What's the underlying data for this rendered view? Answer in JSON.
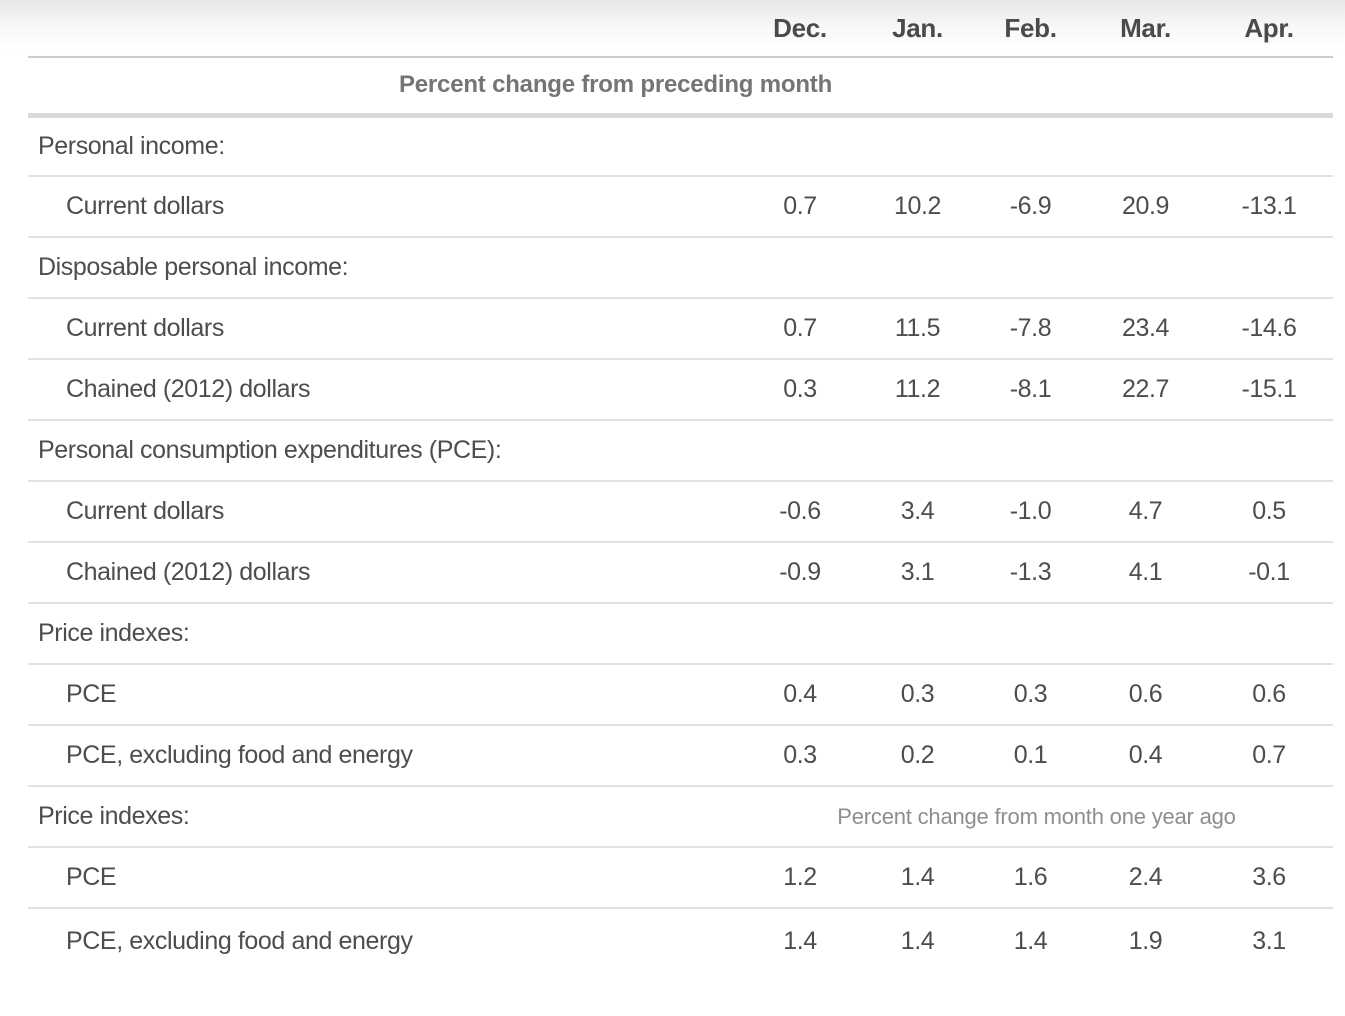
{
  "table": {
    "columns": [
      "Dec.",
      "Jan.",
      "Feb.",
      "Mar.",
      "Apr."
    ],
    "band_note_1": "Percent change from preceding month",
    "band_note_2": "Percent change from month one year ago",
    "rows": [
      {
        "type": "section",
        "label": "Personal income:"
      },
      {
        "type": "data",
        "label": "Current dollars",
        "values": [
          "0.7",
          "10.2",
          "-6.9",
          "20.9",
          "-13.1"
        ]
      },
      {
        "type": "section",
        "label": "Disposable personal income:"
      },
      {
        "type": "data",
        "label": "Current dollars",
        "values": [
          "0.7",
          "11.5",
          "-7.8",
          "23.4",
          "-14.6"
        ]
      },
      {
        "type": "data",
        "label": "Chained (2012) dollars",
        "values": [
          "0.3",
          "11.2",
          "-8.1",
          "22.7",
          "-15.1"
        ]
      },
      {
        "type": "section",
        "label": "Personal consumption expenditures (PCE):"
      },
      {
        "type": "data",
        "label": "Current dollars",
        "values": [
          "-0.6",
          "3.4",
          "-1.0",
          "4.7",
          "0.5"
        ]
      },
      {
        "type": "data",
        "label": "Chained (2012) dollars",
        "values": [
          "-0.9",
          "3.1",
          "-1.3",
          "4.1",
          "-0.1"
        ]
      },
      {
        "type": "section",
        "label": "Price indexes:"
      },
      {
        "type": "data",
        "label": "PCE",
        "values": [
          "0.4",
          "0.3",
          "0.3",
          "0.6",
          "0.6"
        ]
      },
      {
        "type": "data",
        "label": "PCE, excluding food and energy",
        "values": [
          "0.3",
          "0.2",
          "0.1",
          "0.4",
          "0.7"
        ]
      },
      {
        "type": "section",
        "label": "Price indexes:",
        "note": "Percent change from month one year ago"
      },
      {
        "type": "data",
        "label": "PCE",
        "values": [
          "1.2",
          "1.4",
          "1.6",
          "2.4",
          "3.6"
        ]
      },
      {
        "type": "data",
        "label": "PCE, excluding food and energy",
        "values": [
          "1.4",
          "1.4",
          "1.4",
          "1.9",
          "3.1"
        ]
      }
    ]
  },
  "colors": {
    "text_primary": "#4d4d4d",
    "text_header": "#4a4a4a",
    "text_band_note_bold": "#757575",
    "text_band_note_light": "#8e8e8e",
    "divider_thin": "#e1e1e1",
    "divider_header": "#cccccc",
    "divider_thick": "#d9d9d9",
    "header_gradient_top": "#e8e8e8",
    "background": "#ffffff"
  },
  "chart_data": {
    "type": "table",
    "title": "",
    "columns": [
      "Dec.",
      "Jan.",
      "Feb.",
      "Mar.",
      "Apr."
    ],
    "sections": [
      {
        "band": "Percent change from preceding month",
        "groups": [
          {
            "group": "Personal income:",
            "rows": [
              {
                "label": "Current dollars",
                "values": [
                  0.7,
                  10.2,
                  -6.9,
                  20.9,
                  -13.1
                ]
              }
            ]
          },
          {
            "group": "Disposable personal income:",
            "rows": [
              {
                "label": "Current dollars",
                "values": [
                  0.7,
                  11.5,
                  -7.8,
                  23.4,
                  -14.6
                ]
              },
              {
                "label": "Chained (2012) dollars",
                "values": [
                  0.3,
                  11.2,
                  -8.1,
                  22.7,
                  -15.1
                ]
              }
            ]
          },
          {
            "group": "Personal consumption expenditures (PCE):",
            "rows": [
              {
                "label": "Current dollars",
                "values": [
                  -0.6,
                  3.4,
                  -1.0,
                  4.7,
                  0.5
                ]
              },
              {
                "label": "Chained (2012) dollars",
                "values": [
                  -0.9,
                  3.1,
                  -1.3,
                  4.1,
                  -0.1
                ]
              }
            ]
          },
          {
            "group": "Price indexes:",
            "rows": [
              {
                "label": "PCE",
                "values": [
                  0.4,
                  0.3,
                  0.3,
                  0.6,
                  0.6
                ]
              },
              {
                "label": "PCE, excluding food and energy",
                "values": [
                  0.3,
                  0.2,
                  0.1,
                  0.4,
                  0.7
                ]
              }
            ]
          }
        ]
      },
      {
        "band": "Percent change from month one year ago",
        "groups": [
          {
            "group": "Price indexes:",
            "rows": [
              {
                "label": "PCE",
                "values": [
                  1.2,
                  1.4,
                  1.6,
                  2.4,
                  3.6
                ]
              },
              {
                "label": "PCE, excluding food and energy",
                "values": [
                  1.4,
                  1.4,
                  1.4,
                  1.9,
                  3.1
                ]
              }
            ]
          }
        ]
      }
    ]
  }
}
